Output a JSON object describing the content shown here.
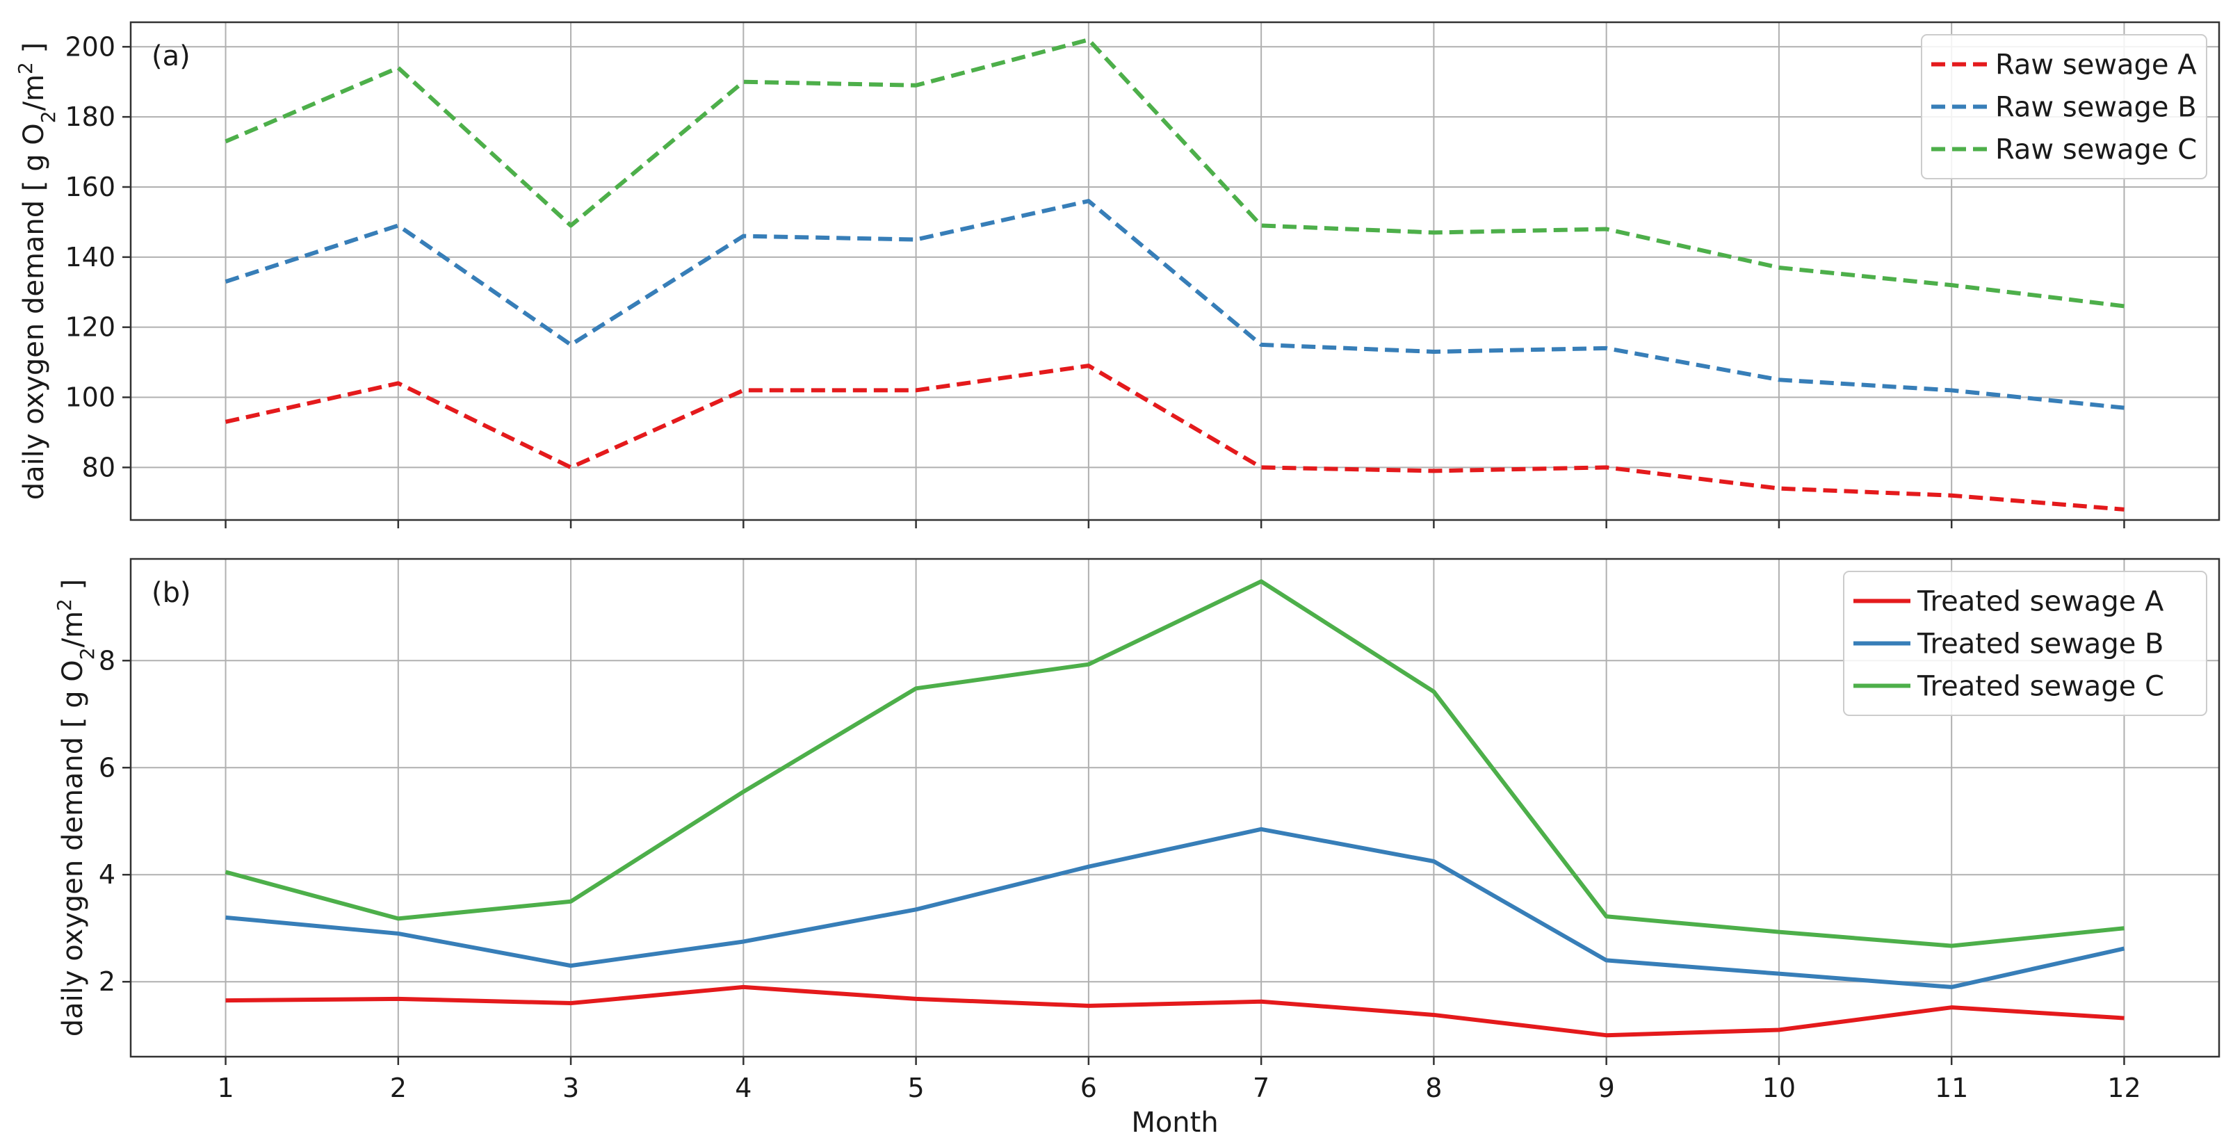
{
  "colors": {
    "red": "#e41a1c",
    "blue": "#377eb8",
    "green": "#4daf4a",
    "grid": "#b0b0b0",
    "axis": "#333333"
  },
  "chart_data": [
    {
      "type": "line",
      "panel_label": "(a)",
      "ylabel": "daily oxygen demand [ g O₂/m² ]",
      "ylabel_parts": {
        "a": "daily oxygen demand [ g O",
        "b": "2",
        "c": "/m",
        "d": "2",
        "e": " ]"
      },
      "x": [
        1,
        2,
        3,
        4,
        5,
        6,
        7,
        8,
        9,
        10,
        11,
        12
      ],
      "xlim": [
        0.45,
        12.55
      ],
      "ylim": [
        65,
        207
      ],
      "yticks": [
        80,
        100,
        120,
        140,
        160,
        180,
        200
      ],
      "grid": true,
      "legend_position": "top-right",
      "line_style": "dashed",
      "series": [
        {
          "name": "Raw sewage A",
          "color": "#e41a1c",
          "values": [
            93,
            104,
            80,
            102,
            102,
            109,
            80,
            79,
            80,
            74,
            72,
            68
          ]
        },
        {
          "name": "Raw sewage B",
          "color": "#377eb8",
          "values": [
            133,
            149,
            115,
            146,
            145,
            156,
            115,
            113,
            114,
            105,
            102,
            97
          ]
        },
        {
          "name": "Raw sewage C",
          "color": "#4daf4a",
          "values": [
            173,
            194,
            149,
            190,
            189,
            202,
            149,
            147,
            148,
            137,
            132,
            126
          ]
        }
      ]
    },
    {
      "type": "line",
      "panel_label": "(b)",
      "xlabel": "Month",
      "ylabel": "daily oxygen demand [ g O₂/m² ]",
      "ylabel_parts": {
        "a": "daily oxygen demand [ g O",
        "b": "2",
        "c": "/m",
        "d": "2",
        "e": " ]"
      },
      "x": [
        1,
        2,
        3,
        4,
        5,
        6,
        7,
        8,
        9,
        10,
        11,
        12
      ],
      "xticks": [
        "1",
        "2",
        "3",
        "4",
        "5",
        "6",
        "7",
        "8",
        "9",
        "10",
        "11",
        "12"
      ],
      "xlim": [
        0.45,
        12.55
      ],
      "ylim": [
        0.6,
        9.9
      ],
      "yticks": [
        2,
        4,
        6,
        8
      ],
      "grid": true,
      "legend_position": "top-right",
      "line_style": "solid",
      "series": [
        {
          "name": "Treated sewage A",
          "color": "#e41a1c",
          "values": [
            1.65,
            1.68,
            1.6,
            1.9,
            1.68,
            1.55,
            1.63,
            1.38,
            1.0,
            1.1,
            1.52,
            1.32
          ]
        },
        {
          "name": "Treated sewage B",
          "color": "#377eb8",
          "values": [
            3.2,
            2.9,
            2.3,
            2.75,
            3.35,
            4.15,
            4.85,
            4.25,
            2.4,
            2.15,
            1.9,
            2.62
          ]
        },
        {
          "name": "Treated sewage C",
          "color": "#4daf4a",
          "values": [
            4.05,
            3.18,
            3.5,
            5.55,
            7.48,
            7.93,
            9.48,
            7.42,
            3.22,
            2.93,
            2.67,
            3.0
          ]
        }
      ]
    }
  ]
}
